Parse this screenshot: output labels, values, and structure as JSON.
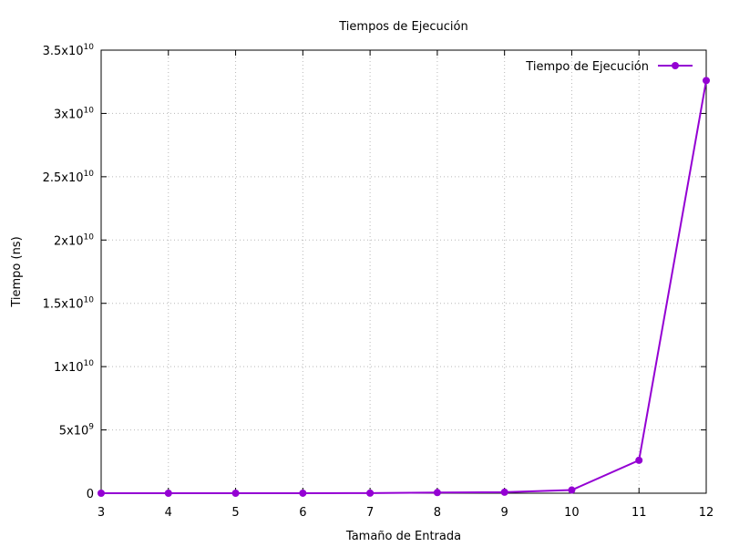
{
  "chart_data": {
    "type": "line",
    "title": "Tiempos de Ejecución",
    "xlabel": "Tamaño de Entrada",
    "ylabel": "Tiempo (ns)",
    "xlim": [
      3,
      12
    ],
    "ylim": [
      0,
      35000000000
    ],
    "x_ticks": [
      3,
      4,
      5,
      6,
      7,
      8,
      9,
      10,
      11,
      12
    ],
    "y_ticks": [
      {
        "value": 0,
        "mantissa": "0",
        "exp": ""
      },
      {
        "value": 5000000000,
        "mantissa": "5x10",
        "exp": "9"
      },
      {
        "value": 10000000000,
        "mantissa": "1x10",
        "exp": "10"
      },
      {
        "value": 15000000000,
        "mantissa": "1.5x10",
        "exp": "10"
      },
      {
        "value": 20000000000,
        "mantissa": "2x10",
        "exp": "10"
      },
      {
        "value": 25000000000,
        "mantissa": "2.5x10",
        "exp": "10"
      },
      {
        "value": 30000000000,
        "mantissa": "3x10",
        "exp": "10"
      },
      {
        "value": 35000000000,
        "mantissa": "3.5x10",
        "exp": "10"
      }
    ],
    "grid": true,
    "legend_position": "top-right",
    "series": [
      {
        "name": "Tiempo de Ejecución",
        "color": "#9400d3",
        "x": [
          3,
          4,
          5,
          6,
          7,
          8,
          9,
          10,
          11,
          12
        ],
        "values": [
          5000,
          30000,
          200000,
          1500000,
          10000000,
          50000000,
          80000000,
          250000000,
          2600000000,
          32600000000
        ]
      }
    ]
  }
}
